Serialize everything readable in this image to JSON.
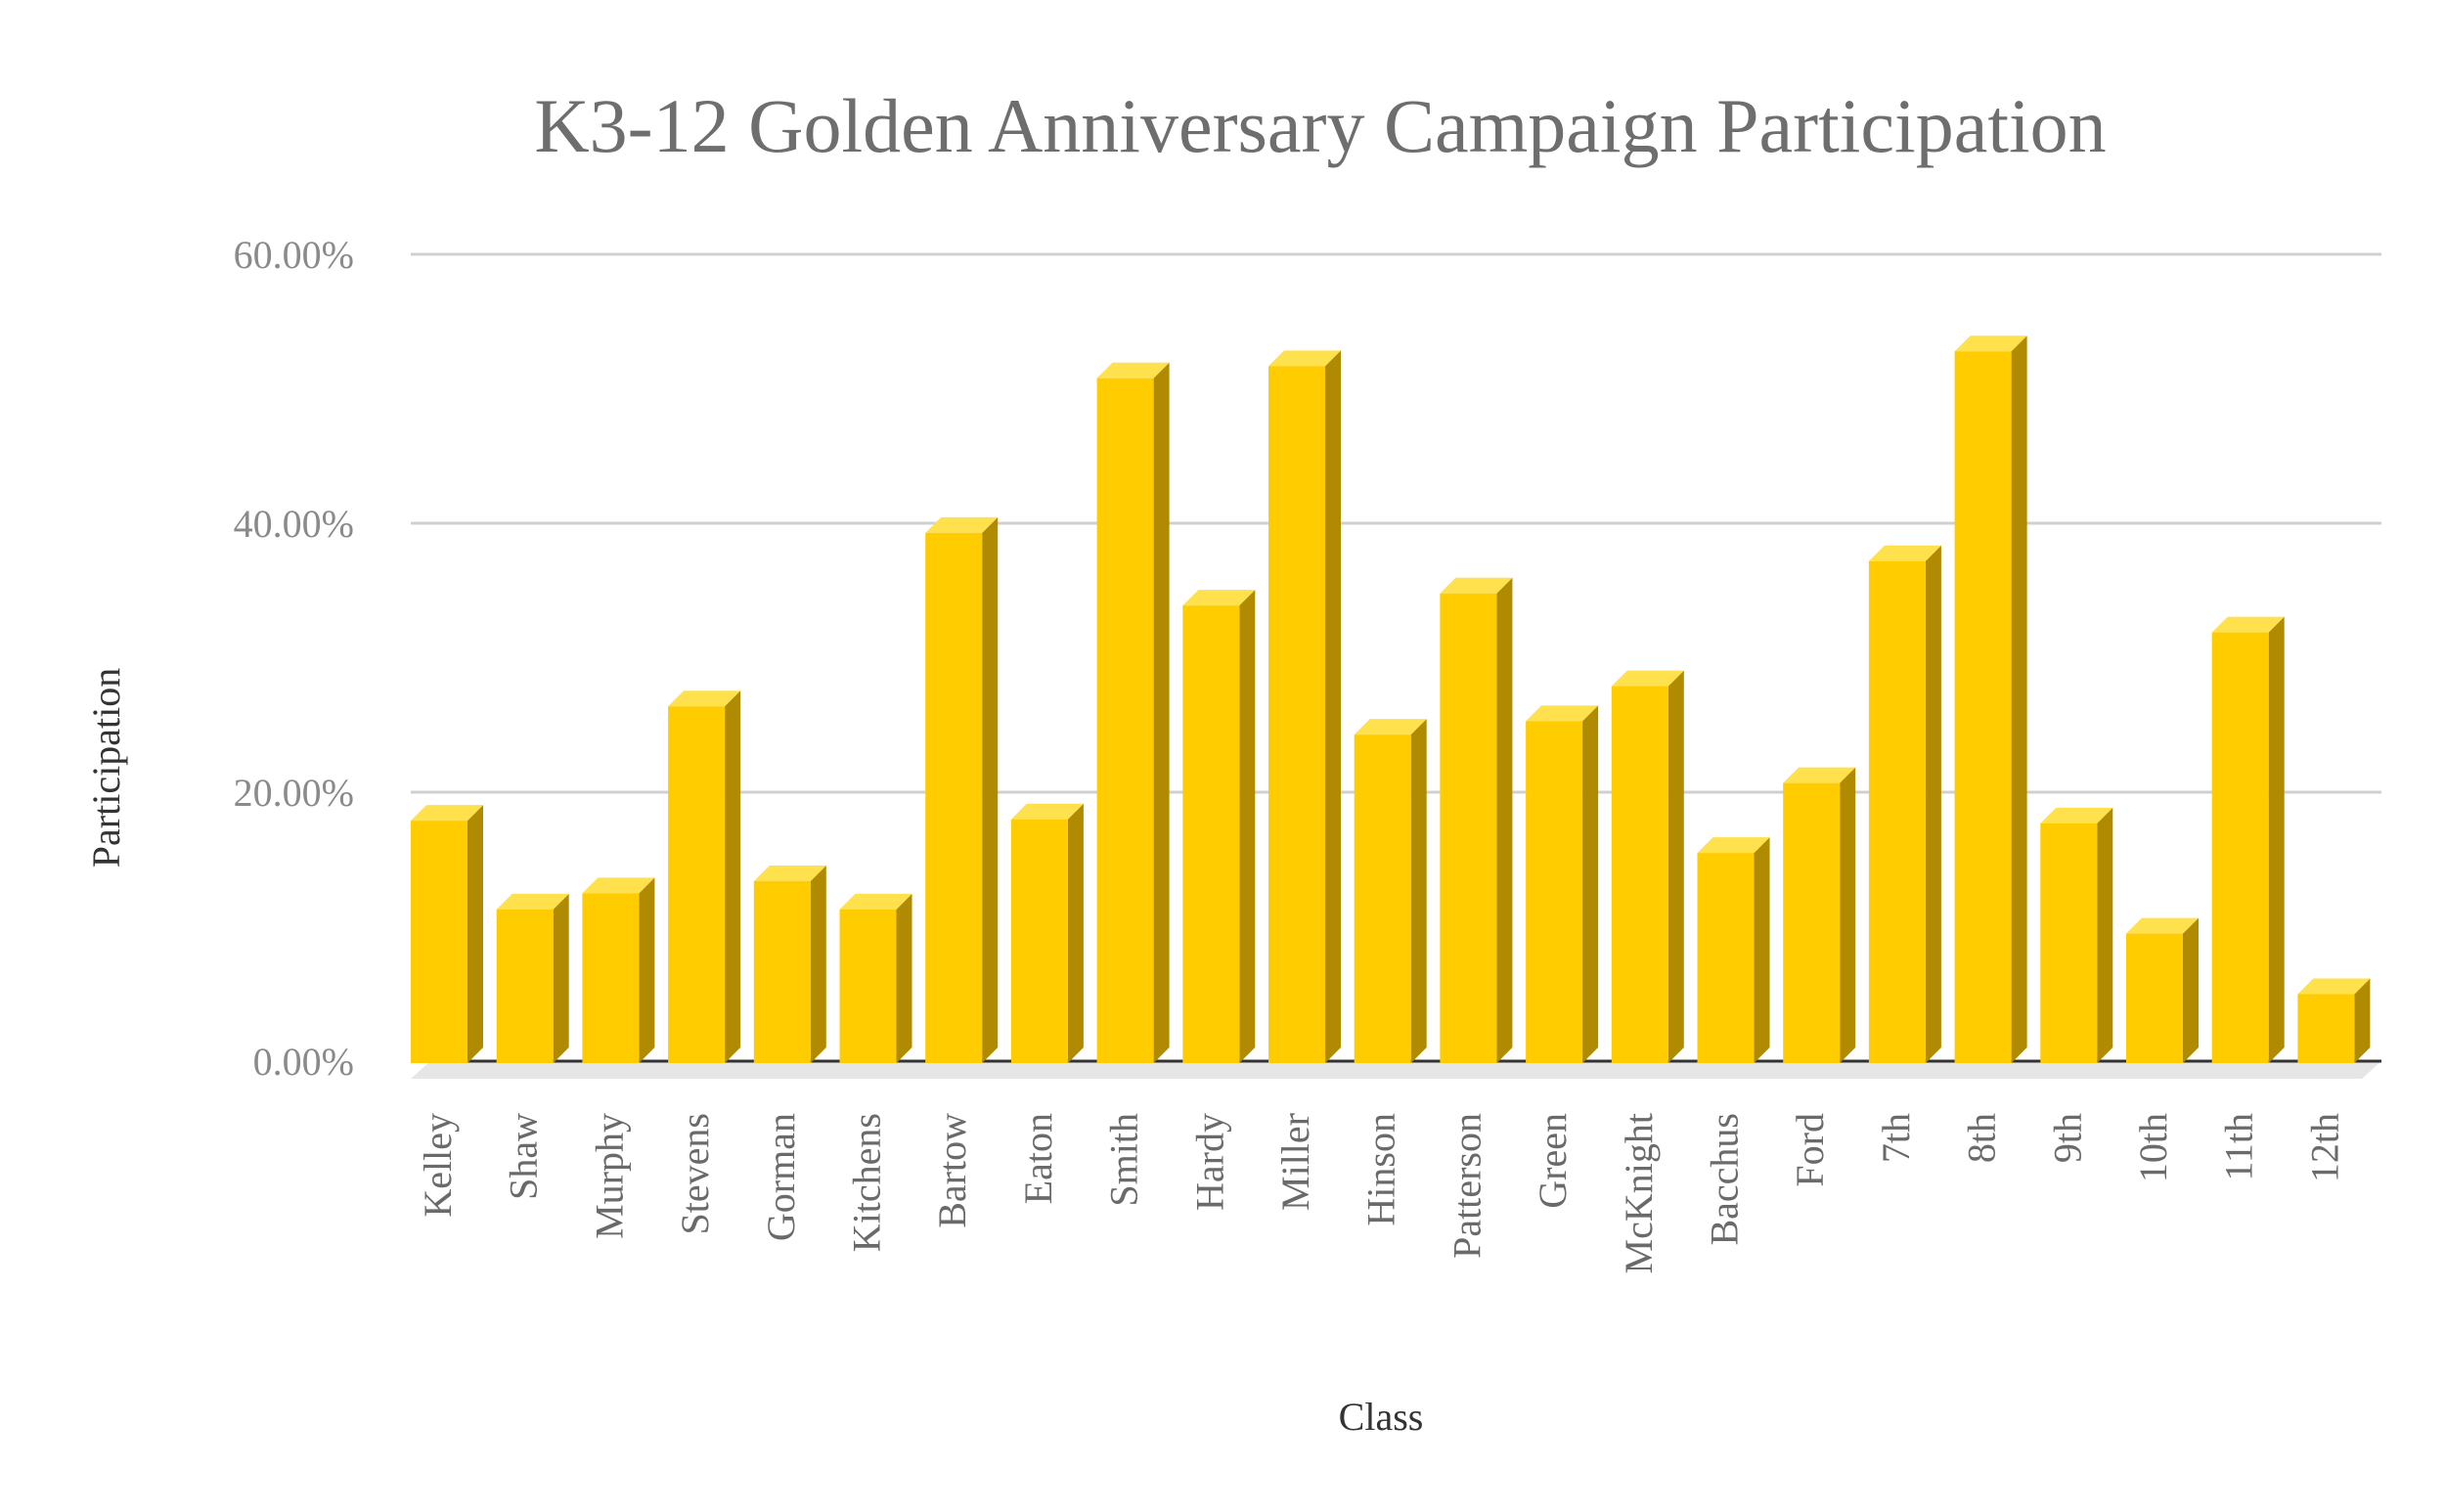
{
  "chart_data": {
    "type": "bar",
    "title": "K3-12 Golden Anniversary Campaign Participation",
    "xlabel": "Class",
    "ylabel": "Participation",
    "ylim": [
      0,
      60
    ],
    "yticks": [
      "0.00%",
      "20.00%",
      "40.00%",
      "60.00%"
    ],
    "grid": true,
    "legend": "none",
    "categories": [
      "Kelley",
      "Shaw",
      "Murphy",
      "Stevens",
      "Gorman",
      "Kitchens",
      "Bartow",
      "Eaton",
      "Smith",
      "Hardy",
      "Miller",
      "Hinson",
      "Patterson",
      "Green",
      "McKnight",
      "Bacchus",
      "Ford",
      "7th",
      "8th",
      "9th",
      "10th",
      "11th",
      "12th"
    ],
    "values": [
      18.9,
      12.3,
      13.5,
      27.4,
      14.4,
      12.3,
      40.3,
      19.0,
      51.8,
      34.9,
      52.7,
      25.3,
      35.8,
      26.3,
      28.9,
      16.5,
      21.7,
      38.2,
      53.8,
      18.7,
      10.5,
      32.9,
      6.0
    ],
    "colors": {
      "bar_front": "#ffcc00",
      "bar_top": "#ffe04d",
      "bar_side": "#b08a00",
      "grid": "#d0d0d0",
      "baseline": "#333333",
      "floor": "#e6e6e6"
    }
  }
}
